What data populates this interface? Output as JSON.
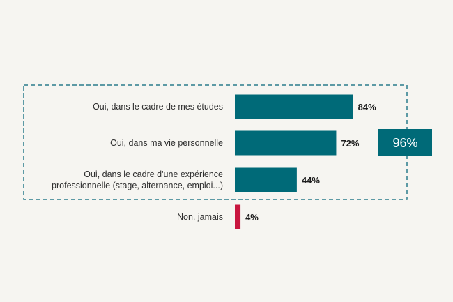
{
  "chart_data": {
    "type": "bar",
    "orientation": "horizontal",
    "categories": [
      [
        "Oui, dans le cadre de mes études"
      ],
      [
        "Oui, dans ma vie personnelle"
      ],
      [
        "Oui, dans le cadre d'une expérience",
        "professionnelle (stage, alternance, emploi...)"
      ],
      [
        "Non, jamais"
      ]
    ],
    "values": [
      84,
      72,
      44,
      4
    ],
    "value_labels": [
      "84%",
      "72%",
      "44%",
      "4%"
    ],
    "colors": [
      "#006a78",
      "#006a78",
      "#006a78",
      "#c8163f"
    ],
    "xlim": [
      0,
      100
    ],
    "grouped_total": {
      "label": "96%",
      "groups_rows": [
        0,
        1,
        2
      ],
      "color": "#006a78"
    },
    "box_border_color": "#2a7c8c",
    "title": "",
    "xlabel": "",
    "ylabel": "",
    "grid": false,
    "legend": "none"
  }
}
